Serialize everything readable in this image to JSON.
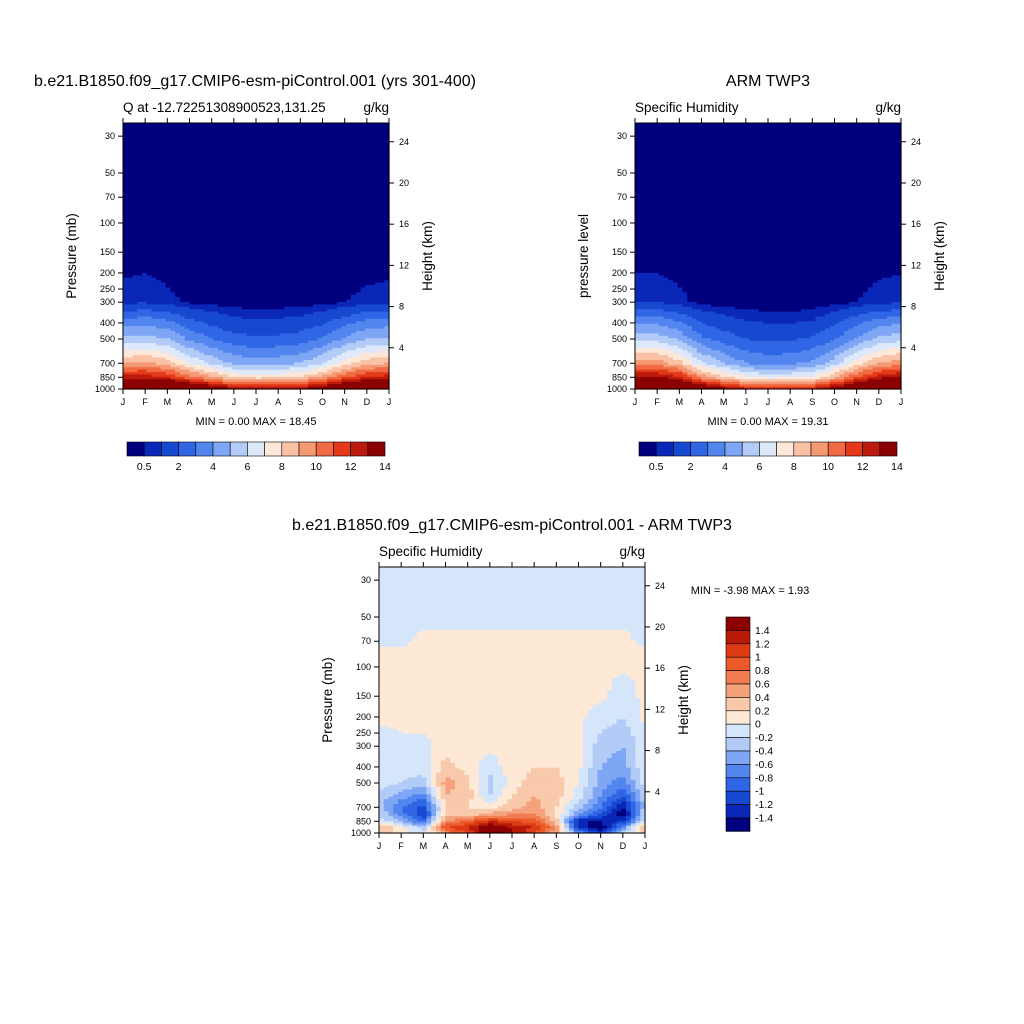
{
  "palette_q": [
    "#00007f",
    "#0a27b8",
    "#1648d0",
    "#2f66e6",
    "#5286ee",
    "#7ea6f4",
    "#b3cbf7",
    "#dde9fb",
    "#fce7d8",
    "#f9c1a6",
    "#f59874",
    "#f16a43",
    "#e43a1a",
    "#bb1a0c",
    "#8b0000"
  ],
  "palette_diff": [
    "#00007f",
    "#0a27b8",
    "#1648d0",
    "#2f66e6",
    "#5286ee",
    "#7ea6f4",
    "#b3cbf7",
    "#d6e6fa",
    "#fde9d6",
    "#f9c9ac",
    "#f5a27c",
    "#f17c52",
    "#ec5a2a",
    "#dd3b13",
    "#b81a08",
    "#8b0000"
  ],
  "months": [
    "J",
    "F",
    "M",
    "A",
    "M",
    "J",
    "J",
    "A",
    "S",
    "O",
    "N",
    "D",
    "J"
  ],
  "pressure_ticks": [
    "30",
    "50",
    "70",
    "100",
    "150",
    "200",
    "250",
    "300",
    "400",
    "500",
    "700",
    "850",
    "1000"
  ],
  "height_ticks": [
    "24",
    "20",
    "16",
    "12",
    "8",
    "4"
  ],
  "panels": [
    {
      "id": "model",
      "title": "b.e21.B1850.f09_g17.CMIP6-esm-piControl.001 (yrs 301-400)",
      "left_label": "Q at -12.72251308900523,131.25",
      "right_label": "g/kg",
      "ylabel": "Pressure (mb)",
      "ylabel_right": "Height (km)",
      "stats": "MIN =   0.00 MAX =  18.45"
    },
    {
      "id": "obs",
      "title": "ARM TWP3",
      "left_label": "Specific Humidity",
      "right_label": "g/kg",
      "ylabel": "pressure level",
      "ylabel_right": "Height (km)",
      "stats": "MIN =   0.00 MAX =  19.31"
    },
    {
      "id": "diff",
      "title": "b.e21.B1850.f09_g17.CMIP6-esm-piControl.001 - ARM TWP3",
      "left_label": "Specific Humidity",
      "right_label": "g/kg",
      "ylabel": "Pressure (mb)",
      "ylabel_right": "Height (km)",
      "stats": "MIN =  -3.98 MAX =   1.93"
    }
  ],
  "colorbar_q_labels": [
    "0.5",
    "2",
    "4",
    "6",
    "8",
    "10",
    "12",
    "14"
  ],
  "colorbar_diff_labels": [
    "1.4",
    "1.2",
    "1",
    "0.8",
    "0.6",
    "0.4",
    "0.2",
    "0",
    "-0.2",
    "-0.4",
    "-0.6",
    "-0.8",
    "-1",
    "-1.2",
    "-1.4"
  ],
  "chart_data": [
    {
      "type": "heatmap",
      "title": "b.e21.B1850.f09_g17.CMIP6-esm-piControl.001 (yrs 301-400)",
      "subtitle": "Q at -12.72251308900523,131.25",
      "units": "g/kg",
      "x": [
        "J",
        "F",
        "M",
        "A",
        "M",
        "J",
        "J",
        "A",
        "S",
        "O",
        "N",
        "D",
        "J"
      ],
      "ylabel": "Pressure (mb)",
      "ylabel_right": "Height (km)",
      "yscale": "log",
      "ylim": [
        1000,
        25
      ],
      "levels": [
        0.5,
        1,
        2,
        3,
        4,
        5,
        6,
        7,
        8,
        9,
        10,
        11,
        12,
        13,
        14
      ],
      "min": 0.0,
      "max": 18.45,
      "p_levels": [
        1000,
        850,
        700,
        500,
        400,
        300
      ],
      "values_by_month": [
        [
          17.5,
          12.5,
          9.0,
          5.2,
          3.6,
          0.8
        ],
        [
          17.5,
          12.6,
          9.2,
          5.4,
          3.8,
          0.9
        ],
        [
          17.0,
          12.0,
          8.6,
          5.0,
          3.4,
          0.7
        ],
        [
          15.6,
          10.4,
          7.0,
          3.8,
          2.4,
          0.4
        ],
        [
          14.4,
          9.2,
          5.8,
          3.0,
          1.8,
          0.3
        ],
        [
          13.2,
          8.0,
          4.8,
          2.4,
          1.3,
          0.2
        ],
        [
          12.8,
          7.6,
          4.4,
          2.2,
          1.2,
          0.2
        ],
        [
          12.8,
          7.8,
          4.6,
          2.3,
          1.2,
          0.2
        ],
        [
          13.2,
          8.2,
          5.0,
          2.5,
          1.4,
          0.2
        ],
        [
          14.2,
          9.2,
          6.0,
          3.1,
          1.9,
          0.3
        ],
        [
          15.6,
          10.8,
          7.6,
          4.2,
          2.7,
          0.5
        ],
        [
          16.8,
          12.0,
          8.6,
          5.0,
          3.4,
          0.7
        ],
        [
          17.5,
          12.5,
          9.0,
          5.2,
          3.6,
          0.8
        ]
      ]
    },
    {
      "type": "heatmap",
      "title": "ARM TWP3",
      "subtitle": "Specific Humidity",
      "units": "g/kg",
      "x": [
        "J",
        "F",
        "M",
        "A",
        "M",
        "J",
        "J",
        "A",
        "S",
        "O",
        "N",
        "D",
        "J"
      ],
      "ylabel": "pressure level",
      "ylabel_right": "Height (km)",
      "yscale": "log",
      "ylim": [
        1000,
        25
      ],
      "levels": [
        0.5,
        1,
        2,
        3,
        4,
        5,
        6,
        7,
        8,
        9,
        10,
        11,
        12,
        13,
        14
      ],
      "min": 0.0,
      "max": 19.31,
      "p_levels": [
        1000,
        850,
        700,
        500,
        400,
        300
      ],
      "values_by_month": [
        [
          18.0,
          13.2,
          9.6,
          5.6,
          3.9,
          0.9
        ],
        [
          18.0,
          13.2,
          9.6,
          5.6,
          3.9,
          0.9
        ],
        [
          17.2,
          12.2,
          8.4,
          4.8,
          3.2,
          0.7
        ],
        [
          15.0,
          9.6,
          6.2,
          3.2,
          2.0,
          0.3
        ],
        [
          13.6,
          8.2,
          5.0,
          2.6,
          1.5,
          0.2
        ],
        [
          12.4,
          7.2,
          4.0,
          2.0,
          1.1,
          0.2
        ],
        [
          11.6,
          6.6,
          3.6,
          1.8,
          1.0,
          0.1
        ],
        [
          11.8,
          6.8,
          3.8,
          1.9,
          1.0,
          0.1
        ],
        [
          12.4,
          7.2,
          4.2,
          2.1,
          1.1,
          0.2
        ],
        [
          13.8,
          8.8,
          5.6,
          2.9,
          1.8,
          0.3
        ],
        [
          15.8,
          11.0,
          7.6,
          4.2,
          2.8,
          0.5
        ],
        [
          17.2,
          12.6,
          9.0,
          5.2,
          3.6,
          0.8
        ],
        [
          18.0,
          13.2,
          9.6,
          5.6,
          3.9,
          0.9
        ]
      ]
    },
    {
      "type": "heatmap",
      "title": "b.e21.B1850.f09_g17.CMIP6-esm-piControl.001 - ARM TWP3",
      "subtitle": "Specific Humidity",
      "units": "g/kg",
      "x": [
        "J",
        "F",
        "M",
        "A",
        "M",
        "J",
        "J",
        "A",
        "S",
        "O",
        "N",
        "D",
        "J"
      ],
      "ylabel": "Pressure (mb)",
      "ylabel_right": "Height (km)",
      "yscale": "log",
      "ylim": [
        1000,
        25
      ],
      "levels": [
        -1.4,
        -1.2,
        -1,
        -0.8,
        -0.6,
        -0.4,
        -0.2,
        0,
        0.2,
        0.4,
        0.6,
        0.8,
        1,
        1.2,
        1.4
      ],
      "min": -3.98,
      "max": 1.93,
      "p_levels": [
        1000,
        925,
        850,
        775,
        700,
        600,
        500,
        400,
        300,
        250,
        200,
        150,
        100,
        70,
        50,
        30
      ],
      "values_by_month": [
        [
          0.3,
          0.4,
          -0.1,
          -0.2,
          -0.3,
          -0.3,
          -0.1,
          -0.05,
          -0.05,
          -0.05,
          0.05,
          0.05,
          0.03,
          -0.01,
          -0.01,
          -0.01
        ],
        [
          0.1,
          0.1,
          -0.4,
          -0.7,
          -0.8,
          -0.5,
          -0.2,
          -0.1,
          -0.05,
          0.0,
          0.05,
          0.05,
          0.03,
          -0.01,
          -0.01,
          -0.01
        ],
        [
          -0.2,
          -0.3,
          -0.9,
          -1.2,
          -1.1,
          -0.7,
          -0.3,
          -0.1,
          -0.05,
          0.0,
          0.05,
          0.05,
          0.03,
          0.01,
          -0.01,
          -0.01
        ],
        [
          0.6,
          1.0,
          0.6,
          0.3,
          0.2,
          0.4,
          0.5,
          0.3,
          0.1,
          0.05,
          0.05,
          0.05,
          0.03,
          0.01,
          -0.01,
          -0.01
        ],
        [
          1.0,
          1.2,
          0.8,
          0.3,
          0.2,
          0.3,
          0.3,
          0.1,
          0.05,
          0.05,
          0.05,
          0.05,
          0.03,
          0.01,
          -0.01,
          -0.01
        ],
        [
          1.9,
          1.6,
          1.2,
          0.5,
          0.1,
          -0.2,
          -0.3,
          -0.1,
          0.05,
          0.05,
          0.05,
          0.05,
          0.03,
          0.01,
          -0.01,
          -0.01
        ],
        [
          1.4,
          1.4,
          1.0,
          0.6,
          0.3,
          0.2,
          0.1,
          0.1,
          0.05,
          0.05,
          0.05,
          0.05,
          0.03,
          0.01,
          -0.01,
          -0.01
        ],
        [
          1.0,
          1.2,
          0.9,
          0.6,
          0.5,
          0.4,
          0.3,
          0.2,
          0.1,
          0.05,
          0.05,
          0.05,
          0.03,
          0.01,
          -0.01,
          -0.01
        ],
        [
          0.4,
          0.6,
          0.3,
          0.2,
          0.2,
          0.3,
          0.3,
          0.2,
          0.1,
          0.05,
          0.05,
          0.05,
          0.03,
          0.01,
          -0.01,
          -0.01
        ],
        [
          -0.6,
          -1.2,
          -1.4,
          -0.6,
          -0.3,
          -0.1,
          0.0,
          0.05,
          0.05,
          0.05,
          0.05,
          0.05,
          0.03,
          0.01,
          -0.01,
          -0.01
        ],
        [
          -1.2,
          -1.6,
          -1.4,
          -1.0,
          -0.8,
          -0.6,
          -0.5,
          -0.4,
          -0.3,
          -0.2,
          -0.1,
          0.05,
          0.03,
          0.01,
          -0.01,
          -0.01
        ],
        [
          -0.2,
          -0.6,
          -1.2,
          -1.6,
          -1.4,
          -1.0,
          -0.7,
          -0.5,
          -0.4,
          -0.3,
          -0.2,
          -0.1,
          0.03,
          0.01,
          -0.01,
          -0.01
        ],
        [
          0.3,
          0.4,
          -0.1,
          -0.2,
          -0.3,
          -0.3,
          -0.1,
          -0.05,
          -0.05,
          -0.05,
          0.05,
          0.05,
          0.03,
          -0.01,
          -0.01,
          -0.01
        ]
      ]
    }
  ]
}
